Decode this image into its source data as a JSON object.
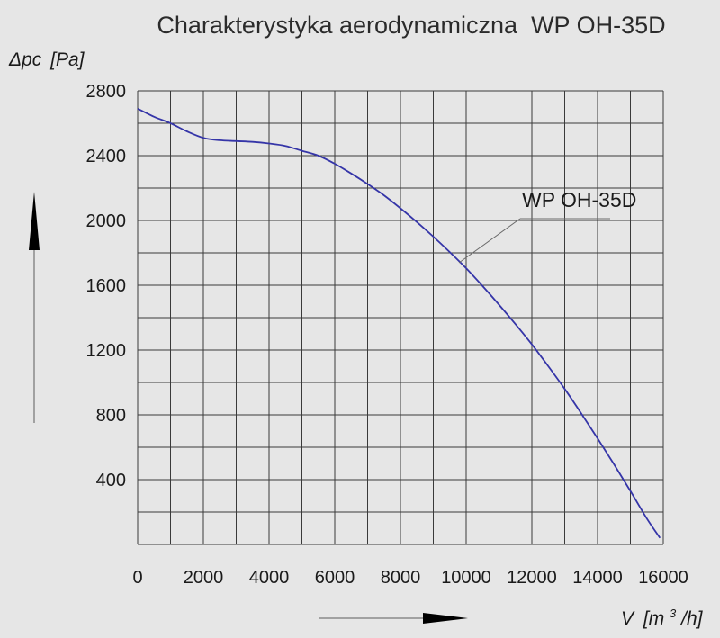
{
  "chart_data": {
    "type": "line",
    "title": "Charakterystyka aerodynamiczna  WP OH-35D",
    "ylabel": {
      "symbol": "Δpc",
      "unit": "[Pa]"
    },
    "xlabel": {
      "symbol": "V",
      "unit_prefix": "[m",
      "unit_sup": "3",
      "unit_suffix": "/h]"
    },
    "xlim": [
      0,
      16000
    ],
    "ylim": [
      0,
      2800
    ],
    "x_ticks": [
      0,
      2000,
      4000,
      6000,
      8000,
      10000,
      12000,
      14000,
      16000
    ],
    "x_tick_labels": [
      "0",
      "2000",
      "4000",
      "6000",
      "8000",
      "10000",
      "12000",
      "14000",
      "16000"
    ],
    "y_ticks": [
      400,
      800,
      1200,
      1600,
      2000,
      2400,
      2800
    ],
    "y_tick_labels": [
      "400",
      "800",
      "1200",
      "1600",
      "2000",
      "2400",
      "2800"
    ],
    "grid": true,
    "series": [
      {
        "name": "WP OH-35D",
        "color": "#3535a8",
        "x": [
          0,
          500,
          1000,
          1500,
          2000,
          2500,
          3000,
          3500,
          4000,
          4500,
          5000,
          5500,
          6000,
          6500,
          7000,
          7500,
          8000,
          8500,
          9000,
          9500,
          10000,
          10500,
          11000,
          11500,
          12000,
          12500,
          13000,
          13500,
          14000,
          14500,
          15000,
          15500,
          15900
        ],
        "y": [
          2690,
          2640,
          2600,
          2550,
          2510,
          2495,
          2490,
          2485,
          2475,
          2460,
          2430,
          2400,
          2350,
          2290,
          2225,
          2155,
          2075,
          1990,
          1900,
          1805,
          1705,
          1595,
          1480,
          1360,
          1235,
          1100,
          960,
          810,
          655,
          495,
          330,
          160,
          40
        ]
      }
    ]
  },
  "series_label": {
    "text": "WP OH-35D"
  }
}
